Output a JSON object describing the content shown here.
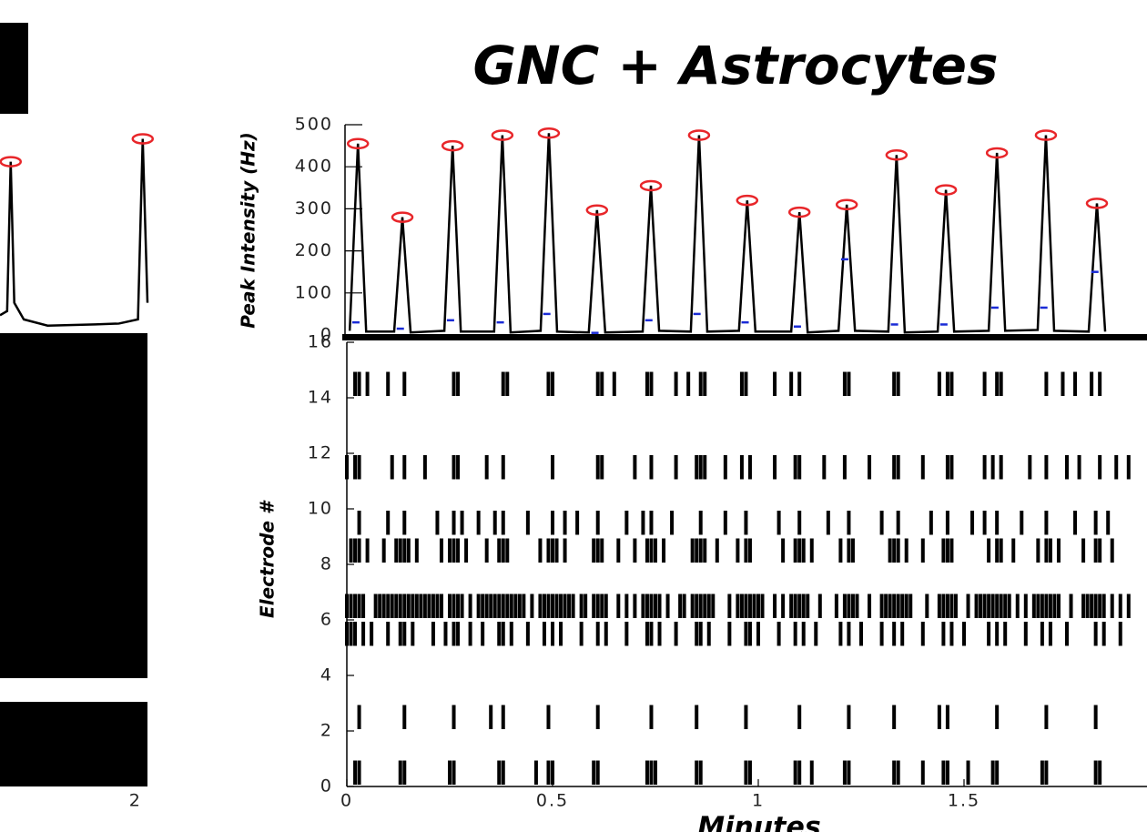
{
  "chart_data": {
    "type": "line-raster",
    "title": "GNC + Astrocytes",
    "top": {
      "ylabel": "Peak Intensity (Hz)",
      "ylim": [
        0,
        500
      ],
      "yticks": [
        0,
        100,
        200,
        300,
        400,
        500
      ],
      "line": {
        "color": "#000000",
        "x": [
          0.007,
          0.027,
          0.047,
          0.115,
          0.135,
          0.155,
          0.237,
          0.257,
          0.277,
          0.358,
          0.378,
          0.398,
          0.471,
          0.491,
          0.511,
          0.588,
          0.608,
          0.628,
          0.719,
          0.739,
          0.759,
          0.836,
          0.856,
          0.876,
          0.953,
          0.973,
          0.993,
          1.08,
          1.1,
          1.12,
          1.195,
          1.215,
          1.235,
          1.316,
          1.336,
          1.356,
          1.436,
          1.456,
          1.476,
          1.56,
          1.58,
          1.6,
          1.679,
          1.699,
          1.719,
          1.803,
          1.823,
          1.843
        ],
        "values": [
          10,
          455,
          8,
          8,
          280,
          6,
          10,
          450,
          8,
          8,
          475,
          6,
          10,
          480,
          8,
          6,
          297,
          6,
          8,
          355,
          10,
          8,
          475,
          8,
          10,
          320,
          8,
          8,
          292,
          6,
          10,
          310,
          10,
          8,
          428,
          6,
          8,
          345,
          8,
          10,
          433,
          10,
          12,
          475,
          10,
          8,
          313,
          8
        ]
      },
      "peaks": {
        "color": "#e8262a",
        "x": [
          0.027,
          0.135,
          0.257,
          0.378,
          0.491,
          0.608,
          0.739,
          0.856,
          0.973,
          1.1,
          1.215,
          1.336,
          1.456,
          1.58,
          1.699,
          1.823
        ],
        "values": [
          455,
          280,
          450,
          475,
          480,
          297,
          355,
          475,
          320,
          292,
          310,
          428,
          345,
          433,
          475,
          313
        ]
      },
      "onsets": {
        "color": "#1a2bd6",
        "x": [
          0.022,
          0.13,
          0.252,
          0.373,
          0.486,
          0.603,
          0.734,
          0.851,
          0.968,
          1.095,
          1.21,
          1.331,
          1.451,
          1.575,
          1.694,
          1.818
        ],
        "values": [
          30,
          15,
          35,
          30,
          50,
          5,
          35,
          50,
          30,
          20,
          180,
          25,
          25,
          65,
          65,
          150
        ]
      }
    },
    "raster": {
      "xlabel": "Minutes",
      "ylabel": "Electrode #",
      "xlim": [
        0,
        2
      ],
      "xticks": [
        0,
        0.5,
        1,
        1.5
      ],
      "ylim": [
        0,
        16
      ],
      "yticks": [
        0,
        2,
        4,
        6,
        8,
        10,
        12,
        14,
        16
      ],
      "rows": [
        {
          "electrode": 1,
          "spikes": [
            0.02,
            0.03,
            0.13,
            0.14,
            0.25,
            0.26,
            0.37,
            0.38,
            0.46,
            0.49,
            0.5,
            0.6,
            0.61,
            0.73,
            0.74,
            0.75,
            0.85,
            0.86,
            0.97,
            0.98,
            1.09,
            1.1,
            1.13,
            1.21,
            1.22,
            1.33,
            1.34,
            1.4,
            1.45,
            1.46,
            1.51,
            1.57,
            1.58,
            1.69,
            1.7,
            1.82,
            1.83
          ]
        },
        {
          "electrode": 3,
          "spikes": [
            0.03,
            0.14,
            0.26,
            0.35,
            0.38,
            0.49,
            0.61,
            0.74,
            0.85,
            0.97,
            1.1,
            1.22,
            1.33,
            1.44,
            1.46,
            1.58,
            1.7,
            1.82
          ]
        },
        {
          "electrode": 6,
          "spikes": [
            0.0,
            0.01,
            0.02,
            0.04,
            0.06,
            0.1,
            0.13,
            0.14,
            0.16,
            0.21,
            0.24,
            0.26,
            0.27,
            0.3,
            0.33,
            0.37,
            0.38,
            0.4,
            0.44,
            0.48,
            0.5,
            0.52,
            0.57,
            0.61,
            0.63,
            0.68,
            0.73,
            0.74,
            0.76,
            0.8,
            0.85,
            0.86,
            0.88,
            0.93,
            0.97,
            0.98,
            1.0,
            1.05,
            1.09,
            1.11,
            1.14,
            1.2,
            1.22,
            1.25,
            1.3,
            1.33,
            1.35,
            1.4,
            1.45,
            1.47,
            1.5,
            1.56,
            1.58,
            1.6,
            1.65,
            1.69,
            1.71,
            1.75,
            1.82,
            1.84,
            1.88
          ]
        },
        {
          "electrode": 7,
          "spikes": [
            0.0,
            0.01,
            0.02,
            0.03,
            0.04,
            0.07,
            0.08,
            0.09,
            0.1,
            0.11,
            0.12,
            0.13,
            0.14,
            0.15,
            0.16,
            0.17,
            0.18,
            0.19,
            0.2,
            0.21,
            0.22,
            0.23,
            0.25,
            0.26,
            0.27,
            0.28,
            0.3,
            0.32,
            0.33,
            0.34,
            0.35,
            0.36,
            0.37,
            0.38,
            0.39,
            0.4,
            0.41,
            0.42,
            0.43,
            0.45,
            0.47,
            0.48,
            0.49,
            0.5,
            0.51,
            0.52,
            0.53,
            0.54,
            0.55,
            0.57,
            0.58,
            0.6,
            0.61,
            0.62,
            0.63,
            0.66,
            0.68,
            0.7,
            0.72,
            0.73,
            0.74,
            0.75,
            0.76,
            0.78,
            0.81,
            0.82,
            0.84,
            0.85,
            0.86,
            0.87,
            0.88,
            0.89,
            0.93,
            0.95,
            0.96,
            0.97,
            0.98,
            0.99,
            1.0,
            1.01,
            1.04,
            1.06,
            1.08,
            1.09,
            1.1,
            1.11,
            1.12,
            1.15,
            1.19,
            1.21,
            1.22,
            1.23,
            1.24,
            1.27,
            1.3,
            1.31,
            1.32,
            1.33,
            1.34,
            1.35,
            1.36,
            1.37,
            1.41,
            1.44,
            1.45,
            1.46,
            1.47,
            1.48,
            1.51,
            1.53,
            1.54,
            1.55,
            1.56,
            1.57,
            1.58,
            1.59,
            1.6,
            1.61,
            1.63,
            1.65,
            1.67,
            1.68,
            1.69,
            1.7,
            1.71,
            1.72,
            1.73,
            1.76,
            1.79,
            1.8,
            1.81,
            1.82,
            1.83,
            1.84,
            1.86,
            1.88,
            1.9
          ]
        },
        {
          "electrode": 9,
          "spikes": [
            0.01,
            0.02,
            0.03,
            0.05,
            0.09,
            0.12,
            0.13,
            0.14,
            0.15,
            0.17,
            0.23,
            0.25,
            0.26,
            0.27,
            0.29,
            0.34,
            0.37,
            0.38,
            0.39,
            0.47,
            0.49,
            0.5,
            0.51,
            0.53,
            0.6,
            0.61,
            0.62,
            0.66,
            0.7,
            0.73,
            0.74,
            0.75,
            0.77,
            0.84,
            0.85,
            0.86,
            0.87,
            0.9,
            0.95,
            0.97,
            0.98,
            1.06,
            1.09,
            1.1,
            1.11,
            1.13,
            1.2,
            1.22,
            1.23,
            1.32,
            1.33,
            1.34,
            1.36,
            1.4,
            1.45,
            1.46,
            1.47,
            1.56,
            1.58,
            1.59,
            1.62,
            1.68,
            1.7,
            1.71,
            1.73,
            1.79,
            1.82,
            1.83,
            1.86
          ]
        },
        {
          "electrode": 10,
          "spikes": [
            0.03,
            0.1,
            0.14,
            0.22,
            0.26,
            0.28,
            0.32,
            0.36,
            0.38,
            0.44,
            0.5,
            0.53,
            0.56,
            0.61,
            0.68,
            0.72,
            0.74,
            0.79,
            0.86,
            0.92,
            0.97,
            1.05,
            1.1,
            1.17,
            1.22,
            1.3,
            1.34,
            1.42,
            1.46,
            1.52,
            1.55,
            1.58,
            1.64,
            1.7,
            1.77,
            1.82,
            1.85
          ]
        },
        {
          "electrode": 12,
          "spikes": [
            0.0,
            0.02,
            0.03,
            0.11,
            0.14,
            0.19,
            0.26,
            0.27,
            0.34,
            0.38,
            0.5,
            0.61,
            0.62,
            0.7,
            0.74,
            0.8,
            0.85,
            0.86,
            0.87,
            0.92,
            0.96,
            0.98,
            1.04,
            1.09,
            1.1,
            1.16,
            1.21,
            1.27,
            1.33,
            1.34,
            1.4,
            1.46,
            1.47,
            1.55,
            1.57,
            1.59,
            1.66,
            1.7,
            1.75,
            1.78,
            1.83,
            1.87,
            1.9
          ]
        },
        {
          "electrode": 15,
          "spikes": [
            0.02,
            0.03,
            0.05,
            0.1,
            0.14,
            0.26,
            0.27,
            0.38,
            0.39,
            0.49,
            0.5,
            0.61,
            0.62,
            0.65,
            0.73,
            0.74,
            0.8,
            0.83,
            0.86,
            0.87,
            0.96,
            0.97,
            1.04,
            1.08,
            1.1,
            1.21,
            1.22,
            1.33,
            1.34,
            1.44,
            1.46,
            1.47,
            1.55,
            1.58,
            1.59,
            1.7,
            1.74,
            1.77,
            1.81,
            1.83
          ]
        }
      ]
    },
    "left_panel": {
      "xlim": [
        1.4,
        2.02
      ],
      "xticks": [
        2
      ],
      "ylim": [
        0,
        500
      ],
      "line": {
        "x": [
          1.4,
          1.43,
          1.445,
          1.46,
          1.5,
          1.6,
          1.8,
          1.9,
          1.98,
          2.0,
          2.02
        ],
        "values": [
          30,
          40,
          400,
          60,
          20,
          5,
          8,
          10,
          20,
          455,
          60
        ]
      },
      "peaks": {
        "x": [
          1.445,
          2.0
        ],
        "values": [
          400,
          455
        ]
      }
    }
  }
}
